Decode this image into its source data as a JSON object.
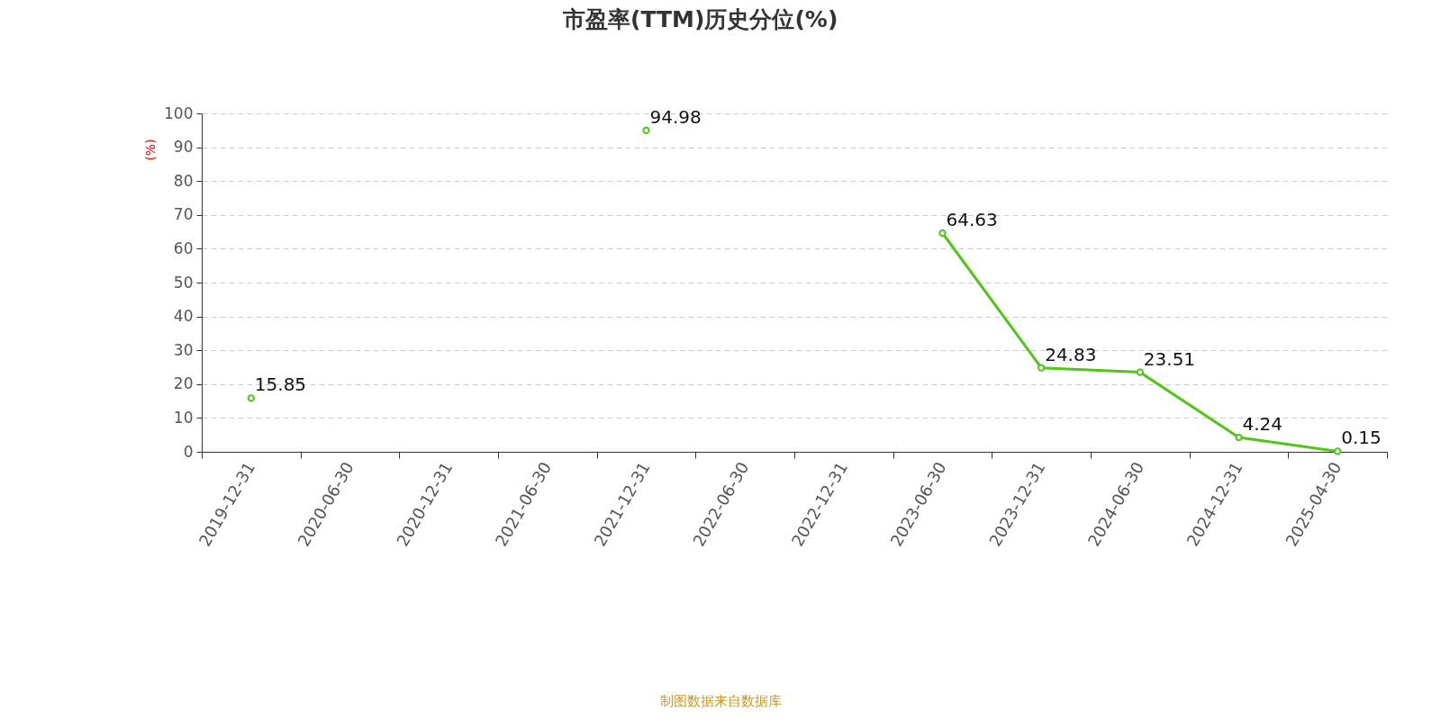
{
  "chart_data": {
    "type": "line",
    "title": "市盈率(TTM)历史分位(%)",
    "ylabel": "(%)",
    "categories": [
      "2019-12-31",
      "2020-06-30",
      "2020-12-31",
      "2021-06-30",
      "2021-12-31",
      "2022-06-30",
      "2022-12-31",
      "2023-06-30",
      "2023-12-31",
      "2024-06-30",
      "2024-12-31",
      "2025-04-30"
    ],
    "series": [
      {
        "color": "#52c41a",
        "values": [
          15.85,
          null,
          null,
          null,
          94.98,
          null,
          null,
          64.63,
          24.83,
          23.51,
          4.24,
          0.15
        ]
      }
    ],
    "ylim": [
      0,
      100
    ],
    "yticks": [
      0,
      10,
      20,
      30,
      40,
      50,
      60,
      70,
      80,
      90,
      100
    ],
    "grid": "y",
    "marker": "circle",
    "line_style": "solid",
    "data_labels": true,
    "legend": false,
    "annotations": [
      "制图数据来自数据库"
    ]
  }
}
